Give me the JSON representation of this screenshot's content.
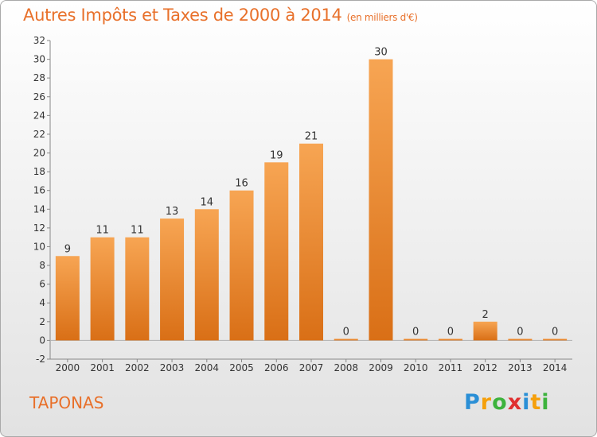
{
  "title": "Autres Impôts et Taxes de 2000 à 2014",
  "subtitle": "(en milliers d'€)",
  "commune": "TAPONAS",
  "logo": {
    "letters": [
      "P",
      "r",
      "o",
      "x",
      "i",
      "t",
      "i"
    ],
    "colors": [
      "#2a8fd6",
      "#f5a00c",
      "#3db33d",
      "#e03030",
      "#2a8fd6",
      "#f5a00c",
      "#3db33d"
    ]
  },
  "colors": {
    "bar_top": "#f7a553",
    "bar_bottom": "#d96f16",
    "accent": "#e8702a"
  },
  "chart_data": {
    "type": "bar",
    "categories": [
      "2000",
      "2001",
      "2002",
      "2003",
      "2004",
      "2005",
      "2006",
      "2007",
      "2008",
      "2009",
      "2010",
      "2011",
      "2012",
      "2013",
      "2014"
    ],
    "values": [
      9,
      11,
      11,
      13,
      14,
      16,
      19,
      21,
      0,
      30,
      0,
      0,
      2,
      0,
      0
    ],
    "title": "Autres Impôts et Taxes de 2000 à 2014",
    "ylim": [
      -2,
      32
    ],
    "yticks": [
      -2,
      0,
      2,
      4,
      6,
      8,
      10,
      12,
      14,
      16,
      18,
      20,
      22,
      24,
      26,
      28,
      30,
      32
    ],
    "grid": false
  }
}
